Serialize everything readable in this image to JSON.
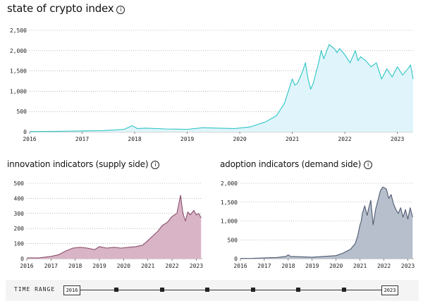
{
  "page_title": "state of crypto index",
  "info_glyph": "i",
  "chart_data": [
    {
      "id": "main",
      "type": "area",
      "title": "state of crypto index",
      "xlabel": "",
      "ylabel": "",
      "xlim": [
        2016,
        2023.3
      ],
      "ylim": [
        0,
        2500
      ],
      "xticks": [
        2016,
        2017,
        2018,
        2019,
        2020,
        2021,
        2022,
        2023
      ],
      "yticks": [
        0,
        500,
        1000,
        1500,
        2000,
        2500
      ],
      "ytick_labels": [
        "0",
        "500",
        "1,000",
        "1,500",
        "2,000",
        "2,500"
      ],
      "color": "#2ec4c4",
      "fill": "#dff5fb",
      "x": [
        2016.0,
        2016.5,
        2017.0,
        2017.4,
        2017.8,
        2017.95,
        2018.05,
        2018.2,
        2018.6,
        2019.0,
        2019.3,
        2019.6,
        2019.9,
        2020.2,
        2020.5,
        2020.7,
        2020.85,
        2020.95,
        2021.0,
        2021.05,
        2021.1,
        2021.2,
        2021.25,
        2021.3,
        2021.35,
        2021.4,
        2021.45,
        2021.5,
        2021.55,
        2021.6,
        2021.7,
        2021.8,
        2021.85,
        2021.9,
        2022.0,
        2022.1,
        2022.2,
        2022.25,
        2022.3,
        2022.4,
        2022.5,
        2022.6,
        2022.7,
        2022.8,
        2022.9,
        2023.0,
        2023.1,
        2023.2,
        2023.25,
        2023.3
      ],
      "values": [
        5,
        10,
        20,
        30,
        60,
        150,
        80,
        90,
        70,
        60,
        100,
        90,
        80,
        120,
        250,
        400,
        700,
        1100,
        1300,
        1150,
        1200,
        1500,
        1700,
        1300,
        1050,
        1200,
        1450,
        1700,
        2000,
        1800,
        2150,
        2050,
        1950,
        2050,
        1900,
        1700,
        2000,
        1750,
        1850,
        1750,
        1600,
        1700,
        1300,
        1550,
        1350,
        1600,
        1400,
        1550,
        1650,
        1300
      ]
    },
    {
      "id": "innovation",
      "type": "area",
      "title": "innovation indicators (supply side)",
      "xlabel": "",
      "ylabel": "",
      "xlim": [
        2016,
        2023.25
      ],
      "ylim": [
        0,
        500
      ],
      "xticks": [
        2016,
        2017,
        2018,
        2019,
        2020,
        2021,
        2022,
        2023
      ],
      "yticks": [
        0,
        100,
        200,
        300,
        400,
        500
      ],
      "ytick_labels": [
        "0",
        "100",
        "200",
        "300",
        "400",
        "500"
      ],
      "color": "#8a4f6c",
      "fill": "#d9b4c7",
      "x": [
        2016.0,
        2016.5,
        2017.0,
        2017.3,
        2017.6,
        2017.9,
        2018.2,
        2018.5,
        2018.8,
        2019.0,
        2019.3,
        2019.6,
        2019.9,
        2020.2,
        2020.5,
        2020.8,
        2021.0,
        2021.2,
        2021.4,
        2021.6,
        2021.8,
        2022.0,
        2022.2,
        2022.35,
        2022.45,
        2022.55,
        2022.65,
        2022.75,
        2022.9,
        2023.0,
        2023.1,
        2023.2
      ],
      "values": [
        5,
        5,
        15,
        25,
        50,
        70,
        75,
        70,
        60,
        80,
        70,
        75,
        70,
        75,
        80,
        90,
        120,
        150,
        180,
        220,
        240,
        280,
        300,
        420,
        300,
        250,
        310,
        290,
        320,
        290,
        300,
        270
      ]
    },
    {
      "id": "adoption",
      "type": "area",
      "title": "adoption indicators (demand side)",
      "xlabel": "",
      "ylabel": "",
      "xlim": [
        2016,
        2023.25
      ],
      "ylim": [
        0,
        2000
      ],
      "xticks": [
        2016,
        2017,
        2018,
        2019,
        2020,
        2021,
        2022,
        2023
      ],
      "yticks": [
        0,
        500,
        1000,
        1500,
        2000
      ],
      "ytick_labels": [
        "0",
        "500",
        "1,000",
        "1,500",
        "2,000"
      ],
      "color": "#4f5a72",
      "fill": "#b6bfcb",
      "x": [
        2016.0,
        2016.5,
        2017.0,
        2017.5,
        2017.9,
        2018.0,
        2018.1,
        2018.5,
        2019.0,
        2019.5,
        2020.0,
        2020.3,
        2020.6,
        2020.8,
        2020.9,
        2021.0,
        2021.05,
        2021.1,
        2021.2,
        2021.3,
        2021.35,
        2021.45,
        2021.55,
        2021.65,
        2021.75,
        2021.85,
        2021.95,
        2022.1,
        2022.2,
        2022.3,
        2022.4,
        2022.5,
        2022.6,
        2022.7,
        2022.8,
        2022.9,
        2023.0,
        2023.1,
        2023.2
      ],
      "values": [
        5,
        10,
        20,
        30,
        60,
        100,
        60,
        50,
        40,
        60,
        80,
        150,
        250,
        400,
        600,
        900,
        1000,
        1200,
        1400,
        1150,
        1300,
        1550,
        900,
        1300,
        1550,
        1800,
        1900,
        1850,
        1600,
        1700,
        1450,
        1300,
        1200,
        1350,
        1100,
        1300,
        1050,
        1350,
        1100
      ]
    }
  ],
  "innovation_title": "innovation indicators (supply side)",
  "adoption_title": "adoption indicators (demand side)",
  "time_range": {
    "label": "TIME RANGE",
    "start": "2016",
    "end": "2023",
    "ticks": [
      2017,
      2018,
      2019,
      2020,
      2021,
      2022
    ]
  }
}
